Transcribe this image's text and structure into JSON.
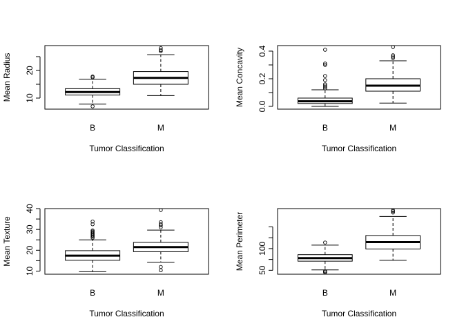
{
  "chart_data": [
    {
      "type": "boxplot",
      "xlabel": "Tumor Classification",
      "ylabel": "Mean Radius",
      "categories": [
        "B",
        "M"
      ],
      "ylim": [
        6,
        29
      ],
      "yticks": [
        10,
        15,
        20,
        25
      ],
      "ytick_labels": [
        "10",
        "",
        "20",
        ""
      ],
      "boxes": [
        {
          "q1": 11.1,
          "median": 12.2,
          "q3": 13.4,
          "whisker_low": 7.8,
          "whisker_high": 16.8,
          "outliers": [
            17.8,
            17.5,
            7.0
          ]
        },
        {
          "q1": 15.0,
          "median": 17.3,
          "q3": 19.6,
          "whisker_low": 10.9,
          "whisker_high": 25.7,
          "outliers": [
            27.0,
            27.4,
            28.1
          ]
        }
      ]
    },
    {
      "type": "boxplot",
      "xlabel": "Tumor Classification",
      "ylabel": "Mean Concavity",
      "categories": [
        "B",
        "M"
      ],
      "ylim": [
        -0.02,
        0.44
      ],
      "yticks": [
        0.0,
        0.1,
        0.2,
        0.3,
        0.4
      ],
      "ytick_labels": [
        "0.0",
        "",
        "0.2",
        "",
        "0.4"
      ],
      "boxes": [
        {
          "q1": 0.021,
          "median": 0.037,
          "q3": 0.06,
          "whisker_low": 0.0,
          "whisker_high": 0.12,
          "outliers": [
            0.13,
            0.14,
            0.15,
            0.16,
            0.19,
            0.22,
            0.3,
            0.31,
            0.41
          ]
        },
        {
          "q1": 0.11,
          "median": 0.15,
          "q3": 0.2,
          "whisker_low": 0.024,
          "whisker_high": 0.33,
          "outliers": [
            0.35,
            0.36,
            0.37,
            0.43
          ]
        }
      ]
    },
    {
      "type": "boxplot",
      "xlabel": "Tumor Classification",
      "ylabel": "Mean Texture",
      "categories": [
        "B",
        "M"
      ],
      "ylim": [
        8.5,
        40
      ],
      "yticks": [
        10,
        15,
        20,
        25,
        30,
        35,
        40
      ],
      "ytick_labels": [
        "10",
        "",
        "20",
        "",
        "30",
        "",
        "40"
      ],
      "boxes": [
        {
          "q1": 15.2,
          "median": 17.4,
          "q3": 19.8,
          "whisker_low": 9.7,
          "whisker_high": 25.0,
          "outliers": [
            26.0,
            26.5,
            27.0,
            27.5,
            28.0,
            28.5,
            29.0,
            29.5,
            32.5,
            33.8
          ]
        },
        {
          "q1": 19.3,
          "median": 21.5,
          "q3": 23.8,
          "whisker_low": 14.3,
          "whisker_high": 29.7,
          "outliers": [
            31.0,
            32.0,
            32.5,
            33.5,
            39.3,
            12.0,
            10.4
          ]
        }
      ]
    },
    {
      "type": "boxplot",
      "xlabel": "Tumor Classification",
      "ylabel": "Mean Perimeter",
      "categories": [
        "B",
        "M"
      ],
      "ylim": [
        41,
        192
      ],
      "yticks": [
        50,
        75,
        100,
        125,
        150
      ],
      "ytick_labels": [
        "50",
        "",
        "100",
        "",
        ""
      ],
      "boxes": [
        {
          "q1": 71,
          "median": 78,
          "q3": 86,
          "whisker_low": 51,
          "whisker_high": 108,
          "outliers": [
            114,
            48,
            47,
            45
          ]
        },
        {
          "q1": 99,
          "median": 115,
          "q3": 130,
          "whisker_low": 73,
          "whisker_high": 174,
          "outliers": [
            183,
            186,
            188
          ]
        }
      ]
    }
  ]
}
